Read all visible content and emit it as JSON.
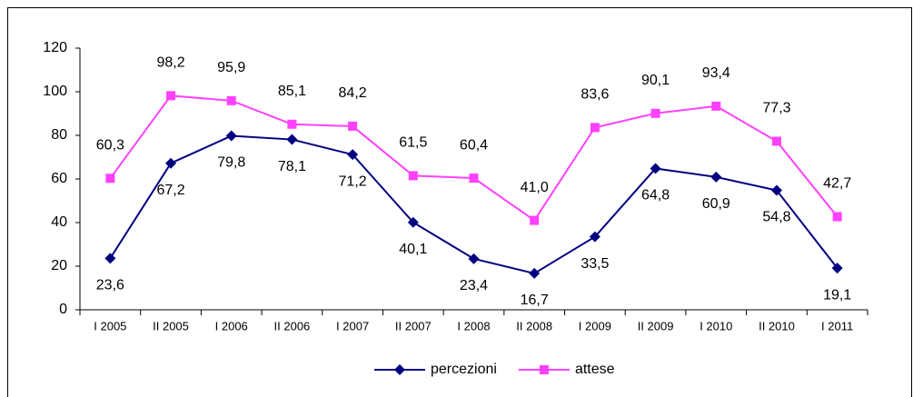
{
  "chart_data": {
    "type": "line",
    "categories": [
      "I 2005",
      "II 2005",
      "I 2006",
      "II 2006",
      "I 2007",
      "II 2007",
      "I 2008",
      "II 2008",
      "I 2009",
      "II 2009",
      "I 2010",
      "II 2010",
      "I 2011"
    ],
    "series": [
      {
        "name": "percezioni",
        "color": "#000080",
        "marker": "diamond",
        "label_side": "below",
        "values": [
          23.6,
          67.2,
          79.8,
          78.1,
          71.2,
          40.1,
          23.4,
          16.7,
          33.5,
          64.8,
          60.9,
          54.8,
          19.1
        ],
        "value_labels": [
          "23,6",
          "67,2",
          "79,8",
          "78,1",
          "71,2",
          "40,1",
          "23,4",
          "16,7",
          "33,5",
          "64,8",
          "60,9",
          "54,8",
          "19,1"
        ]
      },
      {
        "name": "attese",
        "color": "#ff40ff",
        "marker": "square",
        "label_side": "above",
        "values": [
          60.3,
          98.2,
          95.9,
          85.1,
          84.2,
          61.5,
          60.4,
          41.0,
          83.6,
          90.1,
          93.4,
          77.3,
          42.7
        ],
        "value_labels": [
          "60,3",
          "98,2",
          "95,9",
          "85,1",
          "84,2",
          "61,5",
          "60,4",
          "41,0",
          "83,6",
          "90,1",
          "93,4",
          "77,3",
          "42,7"
        ]
      }
    ],
    "ylim": [
      0,
      120
    ],
    "yticks": [
      0,
      20,
      40,
      60,
      80,
      100,
      120
    ],
    "grid": false,
    "legend": "bottom"
  }
}
